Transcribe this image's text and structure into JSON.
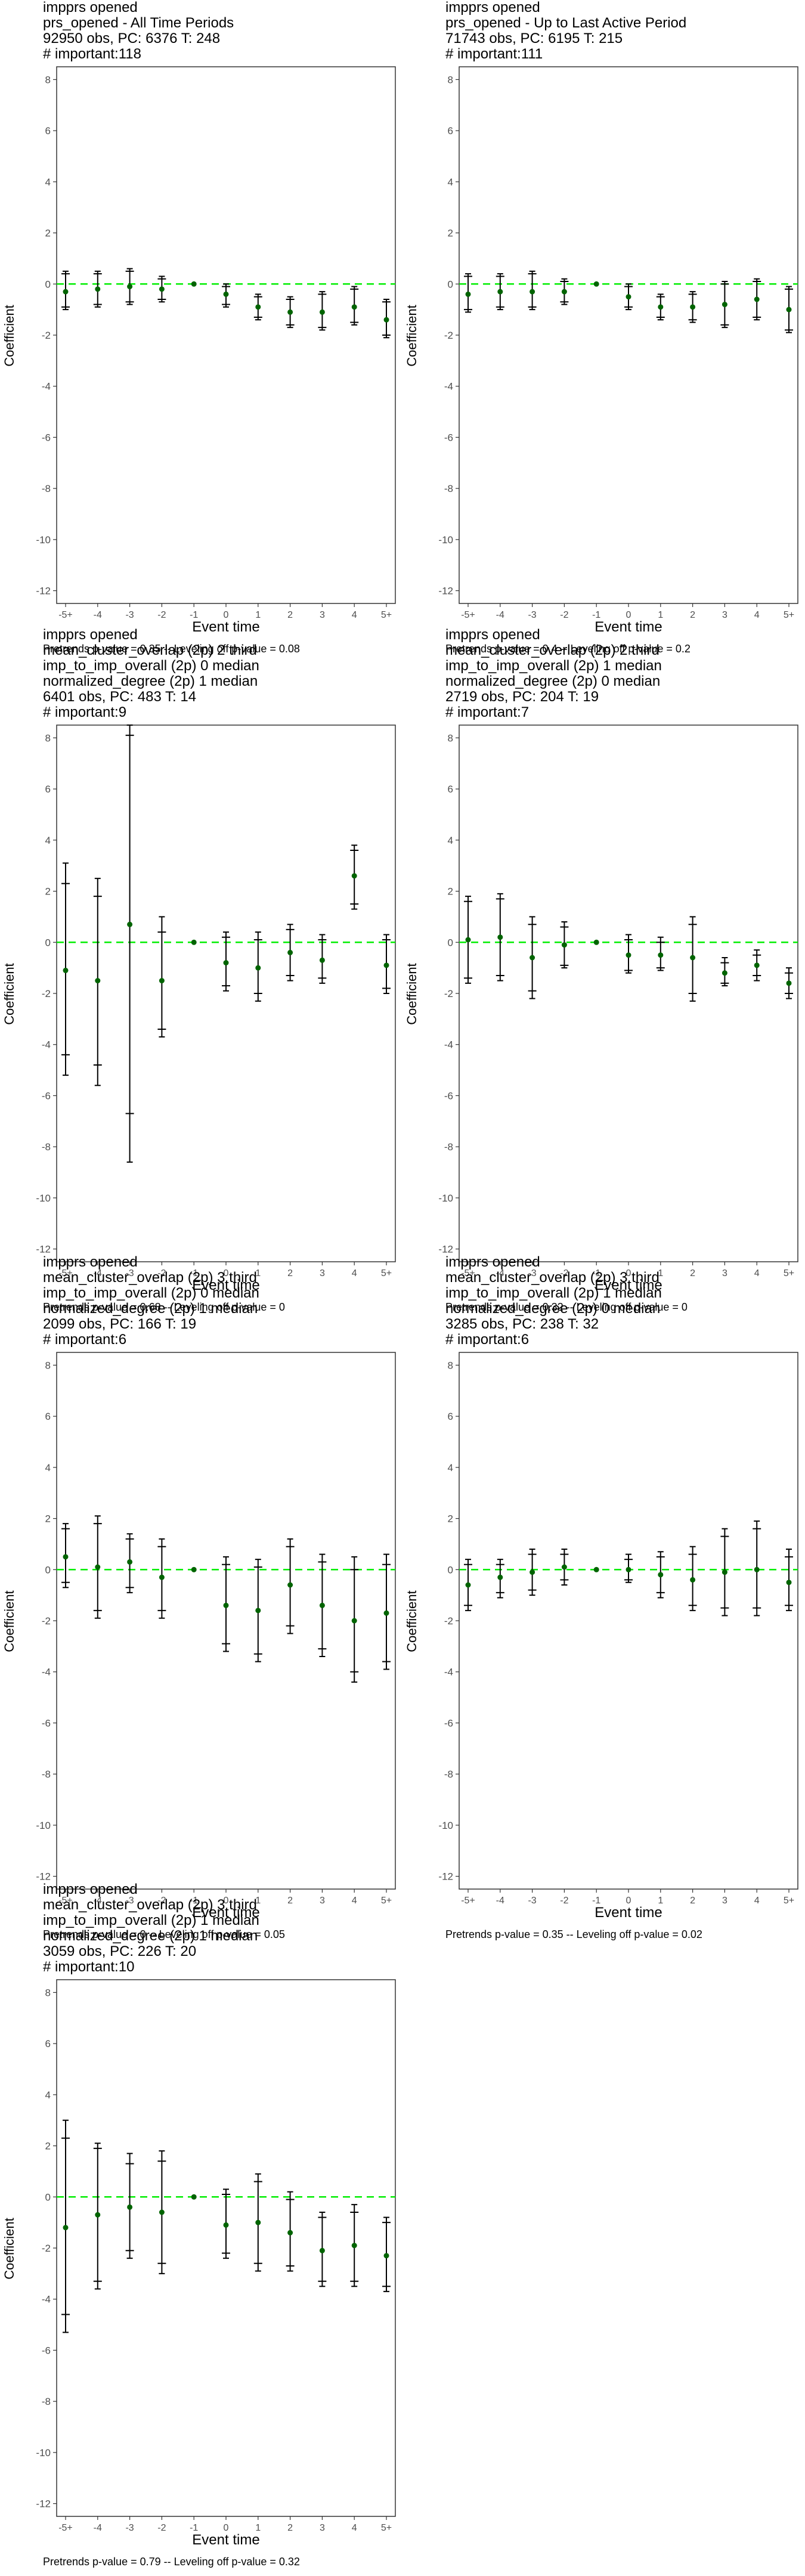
{
  "chart_data": [
    {
      "type": "scatter",
      "title": [
        "impprs opened",
        "prs_opened - All Time Periods",
        "92950 obs, PC: 6376 T: 248",
        "# important:118"
      ],
      "xlabel": "Event time",
      "ylabel": "Coefficient",
      "categories": [
        "-5+",
        "-4",
        "-3",
        "-2",
        "-1",
        "0",
        "1",
        "2",
        "3",
        "4",
        "5+"
      ],
      "ylim": [
        -12.5,
        8.5
      ],
      "yticks": [
        -12,
        -10,
        -8,
        -6,
        -4,
        -2,
        0,
        2,
        4,
        6,
        8
      ],
      "reference_line": 0,
      "points": [
        {
          "y": -0.3,
          "lo": -0.9,
          "hi": 0.4,
          "lo2": -1.0,
          "hi2": 0.5
        },
        {
          "y": -0.2,
          "lo": -0.8,
          "hi": 0.4,
          "lo2": -0.9,
          "hi2": 0.5
        },
        {
          "y": -0.1,
          "lo": -0.7,
          "hi": 0.5,
          "lo2": -0.8,
          "hi2": 0.6
        },
        {
          "y": -0.2,
          "lo": -0.6,
          "hi": 0.2,
          "lo2": -0.7,
          "hi2": 0.3
        },
        {
          "y": 0,
          "lo": 0,
          "hi": 0,
          "lo2": 0,
          "hi2": 0
        },
        {
          "y": -0.4,
          "lo": -0.8,
          "hi": -0.1,
          "lo2": -0.9,
          "hi2": 0.0
        },
        {
          "y": -0.9,
          "lo": -1.3,
          "hi": -0.5,
          "lo2": -1.4,
          "hi2": -0.4
        },
        {
          "y": -1.1,
          "lo": -1.6,
          "hi": -0.6,
          "lo2": -1.7,
          "hi2": -0.5
        },
        {
          "y": -1.1,
          "lo": -1.7,
          "hi": -0.4,
          "lo2": -1.8,
          "hi2": -0.3
        },
        {
          "y": -0.9,
          "lo": -1.5,
          "hi": -0.2,
          "lo2": -1.6,
          "hi2": -0.1
        },
        {
          "y": -1.4,
          "lo": -2.0,
          "hi": -0.7,
          "lo2": -2.1,
          "hi2": -0.6
        }
      ],
      "caption": "Pretrends p-value = 0.35 -- Leveling off p-value = 0.08"
    },
    {
      "type": "scatter",
      "title": [
        "impprs opened",
        "prs_opened - Up to Last Active Period",
        "71743 obs, PC: 6195 T: 215",
        "# important:111"
      ],
      "xlabel": "Event time",
      "ylabel": "Coefficient",
      "categories": [
        "-5+",
        "-4",
        "-3",
        "-2",
        "-1",
        "0",
        "1",
        "2",
        "3",
        "4",
        "5+"
      ],
      "ylim": [
        -12.5,
        8.5
      ],
      "yticks": [
        -12,
        -10,
        -8,
        -6,
        -4,
        -2,
        0,
        2,
        4,
        6,
        8
      ],
      "reference_line": 0,
      "points": [
        {
          "y": -0.4,
          "lo": -1.0,
          "hi": 0.3,
          "lo2": -1.1,
          "hi2": 0.4
        },
        {
          "y": -0.3,
          "lo": -0.9,
          "hi": 0.3,
          "lo2": -1.0,
          "hi2": 0.4
        },
        {
          "y": -0.3,
          "lo": -0.9,
          "hi": 0.4,
          "lo2": -1.0,
          "hi2": 0.5
        },
        {
          "y": -0.3,
          "lo": -0.7,
          "hi": 0.1,
          "lo2": -0.8,
          "hi2": 0.2
        },
        {
          "y": 0,
          "lo": 0,
          "hi": 0,
          "lo2": 0,
          "hi2": 0
        },
        {
          "y": -0.5,
          "lo": -0.9,
          "hi": -0.1,
          "lo2": -1.0,
          "hi2": 0.0
        },
        {
          "y": -0.9,
          "lo": -1.3,
          "hi": -0.5,
          "lo2": -1.4,
          "hi2": -0.4
        },
        {
          "y": -0.9,
          "lo": -1.4,
          "hi": -0.4,
          "lo2": -1.5,
          "hi2": -0.3
        },
        {
          "y": -0.8,
          "lo": -1.6,
          "hi": 0.0,
          "lo2": -1.7,
          "hi2": 0.1
        },
        {
          "y": -0.6,
          "lo": -1.3,
          "hi": 0.1,
          "lo2": -1.4,
          "hi2": 0.2
        },
        {
          "y": -1.0,
          "lo": -1.8,
          "hi": -0.2,
          "lo2": -1.9,
          "hi2": -0.1
        }
      ],
      "caption": "Pretrends p-value = 0.4 -- Leveling off p-value = 0.2"
    },
    {
      "type": "scatter",
      "title": [
        "impprs opened",
        "mean_cluster_overlap (2p) 2 third",
        "imp_to_imp_overall (2p) 0 median",
        "normalized_degree (2p) 1 median",
        "6401 obs, PC: 483 T: 14",
        "# important:9"
      ],
      "xlabel": "Event time",
      "ylabel": "Coefficient",
      "categories": [
        "-5+",
        "-4",
        "-3",
        "-2",
        "-1",
        "0",
        "1",
        "2",
        "3",
        "4",
        "5+"
      ],
      "ylim": [
        -12.5,
        8.5
      ],
      "yticks": [
        -12,
        -10,
        -8,
        -6,
        -4,
        -2,
        0,
        2,
        4,
        6,
        8
      ],
      "reference_line": 0,
      "points": [
        {
          "y": -1.1,
          "lo": -4.4,
          "hi": 2.3,
          "lo2": -5.2,
          "hi2": 3.1
        },
        {
          "y": -1.5,
          "lo": -4.8,
          "hi": 1.8,
          "lo2": -5.6,
          "hi2": 2.5
        },
        {
          "y": 0.7,
          "lo": -6.7,
          "hi": 8.1,
          "lo2": -8.6,
          "hi2": 8.5
        },
        {
          "y": -1.5,
          "lo": -3.4,
          "hi": 0.4,
          "lo2": -3.7,
          "hi2": 1.0
        },
        {
          "y": 0,
          "lo": 0,
          "hi": 0,
          "lo2": 0,
          "hi2": 0
        },
        {
          "y": -0.8,
          "lo": -1.7,
          "hi": 0.2,
          "lo2": -1.9,
          "hi2": 0.4
        },
        {
          "y": -1.0,
          "lo": -2.0,
          "hi": 0.1,
          "lo2": -2.3,
          "hi2": 0.4
        },
        {
          "y": -0.4,
          "lo": -1.3,
          "hi": 0.5,
          "lo2": -1.5,
          "hi2": 0.7
        },
        {
          "y": -0.7,
          "lo": -1.4,
          "hi": 0.1,
          "lo2": -1.6,
          "hi2": 0.3
        },
        {
          "y": 2.6,
          "lo": 1.5,
          "hi": 3.6,
          "lo2": 1.3,
          "hi2": 3.8
        },
        {
          "y": -0.9,
          "lo": -1.8,
          "hi": 0.1,
          "lo2": -2.0,
          "hi2": 0.3
        }
      ],
      "caption": "Pretrends p-value = 0.68 -- Leveling off p-value = 0"
    },
    {
      "type": "scatter",
      "title": [
        "impprs opened",
        "mean_cluster_overlap (2p) 2 third",
        "imp_to_imp_overall (2p) 1 median",
        "normalized_degree (2p) 0 median",
        "2719 obs, PC: 204 T: 19",
        "# important:7"
      ],
      "xlabel": "Event time",
      "ylabel": "Coefficient",
      "categories": [
        "-5+",
        "-4",
        "-3",
        "-2",
        "-1",
        "0",
        "1",
        "2",
        "3",
        "4",
        "5+"
      ],
      "ylim": [
        -12.5,
        8.5
      ],
      "yticks": [
        -12,
        -10,
        -8,
        -6,
        -4,
        -2,
        0,
        2,
        4,
        6,
        8
      ],
      "reference_line": 0,
      "points": [
        {
          "y": 0.1,
          "lo": -1.4,
          "hi": 1.6,
          "lo2": -1.6,
          "hi2": 1.8
        },
        {
          "y": 0.2,
          "lo": -1.3,
          "hi": 1.7,
          "lo2": -1.5,
          "hi2": 1.9
        },
        {
          "y": -0.6,
          "lo": -1.9,
          "hi": 0.7,
          "lo2": -2.2,
          "hi2": 1.0
        },
        {
          "y": -0.1,
          "lo": -0.9,
          "hi": 0.6,
          "lo2": -1.0,
          "hi2": 0.8
        },
        {
          "y": 0,
          "lo": 0,
          "hi": 0,
          "lo2": 0,
          "hi2": 0
        },
        {
          "y": -0.5,
          "lo": -1.1,
          "hi": 0.1,
          "lo2": -1.2,
          "hi2": 0.3
        },
        {
          "y": -0.5,
          "lo": -1.0,
          "hi": 0.0,
          "lo2": -1.1,
          "hi2": 0.2
        },
        {
          "y": -0.6,
          "lo": -2.0,
          "hi": 0.7,
          "lo2": -2.3,
          "hi2": 1.0
        },
        {
          "y": -1.2,
          "lo": -1.6,
          "hi": -0.8,
          "lo2": -1.7,
          "hi2": -0.6
        },
        {
          "y": -0.9,
          "lo": -1.3,
          "hi": -0.5,
          "lo2": -1.5,
          "hi2": -0.3
        },
        {
          "y": -1.6,
          "lo": -2.0,
          "hi": -1.2,
          "lo2": -2.2,
          "hi2": -1.0
        }
      ],
      "caption": "Pretrends p-value = 0.32 -- Leveling off p-value = 0"
    },
    {
      "type": "scatter",
      "title": [
        "impprs opened",
        "mean_cluster_overlap (2p) 3 third",
        "imp_to_imp_overall (2p) 0 median",
        "normalized_degree (2p) 1 median",
        "2099 obs, PC: 166 T: 19",
        "# important:6"
      ],
      "xlabel": "Event time",
      "ylabel": "Coefficient",
      "categories": [
        "-5+",
        "-4",
        "-3",
        "-2",
        "-1",
        "0",
        "1",
        "2",
        "3",
        "4",
        "5+"
      ],
      "ylim": [
        -12.5,
        8.5
      ],
      "yticks": [
        -12,
        -10,
        -8,
        -6,
        -4,
        -2,
        0,
        2,
        4,
        6,
        8
      ],
      "reference_line": 0,
      "points": [
        {
          "y": 0.5,
          "lo": -0.5,
          "hi": 1.6,
          "lo2": -0.7,
          "hi2": 1.8
        },
        {
          "y": 0.1,
          "lo": -1.6,
          "hi": 1.8,
          "lo2": -1.9,
          "hi2": 2.1
        },
        {
          "y": 0.3,
          "lo": -0.7,
          "hi": 1.2,
          "lo2": -0.9,
          "hi2": 1.4
        },
        {
          "y": -0.3,
          "lo": -1.6,
          "hi": 0.9,
          "lo2": -1.9,
          "hi2": 1.2
        },
        {
          "y": 0,
          "lo": 0,
          "hi": 0,
          "lo2": 0,
          "hi2": 0
        },
        {
          "y": -1.4,
          "lo": -2.9,
          "hi": 0.2,
          "lo2": -3.2,
          "hi2": 0.5
        },
        {
          "y": -1.6,
          "lo": -3.3,
          "hi": 0.1,
          "lo2": -3.6,
          "hi2": 0.4
        },
        {
          "y": -0.6,
          "lo": -2.2,
          "hi": 0.9,
          "lo2": -2.5,
          "hi2": 1.2
        },
        {
          "y": -1.4,
          "lo": -3.1,
          "hi": 0.3,
          "lo2": -3.4,
          "hi2": 0.6
        },
        {
          "y": -2.0,
          "lo": -4.0,
          "hi": 0.0,
          "lo2": -4.4,
          "hi2": 0.5
        },
        {
          "y": -1.7,
          "lo": -3.6,
          "hi": 0.2,
          "lo2": -3.9,
          "hi2": 0.6
        }
      ],
      "caption": "Pretrends p-value = 0 -- Leveling off p-value = 0.05"
    },
    {
      "type": "scatter",
      "title": [
        "impprs opened",
        "mean_cluster_overlap (2p) 3 third",
        "imp_to_imp_overall (2p) 1 median",
        "normalized_degree (2p) 0 median",
        "3285 obs, PC: 238 T: 32",
        "# important:6"
      ],
      "xlabel": "Event time",
      "ylabel": "Coefficient",
      "categories": [
        "-5+",
        "-4",
        "-3",
        "-2",
        "-1",
        "0",
        "1",
        "2",
        "3",
        "4",
        "5+"
      ],
      "ylim": [
        -12.5,
        8.5
      ],
      "yticks": [
        -12,
        -10,
        -8,
        -6,
        -4,
        -2,
        0,
        2,
        4,
        6,
        8
      ],
      "reference_line": 0,
      "points": [
        {
          "y": -0.6,
          "lo": -1.4,
          "hi": 0.2,
          "lo2": -1.6,
          "hi2": 0.4
        },
        {
          "y": -0.3,
          "lo": -0.9,
          "hi": 0.2,
          "lo2": -1.1,
          "hi2": 0.4
        },
        {
          "y": -0.1,
          "lo": -0.8,
          "hi": 0.6,
          "lo2": -1.0,
          "hi2": 0.8
        },
        {
          "y": 0.1,
          "lo": -0.4,
          "hi": 0.6,
          "lo2": -0.6,
          "hi2": 0.8
        },
        {
          "y": 0,
          "lo": 0,
          "hi": 0,
          "lo2": 0,
          "hi2": 0
        },
        {
          "y": 0.0,
          "lo": -0.4,
          "hi": 0.4,
          "lo2": -0.5,
          "hi2": 0.6
        },
        {
          "y": -0.2,
          "lo": -0.9,
          "hi": 0.5,
          "lo2": -1.1,
          "hi2": 0.7
        },
        {
          "y": -0.4,
          "lo": -1.4,
          "hi": 0.6,
          "lo2": -1.6,
          "hi2": 0.9
        },
        {
          "y": -0.1,
          "lo": -1.5,
          "hi": 1.3,
          "lo2": -1.8,
          "hi2": 1.6
        },
        {
          "y": 0.0,
          "lo": -1.5,
          "hi": 1.6,
          "lo2": -1.8,
          "hi2": 1.9
        },
        {
          "y": -0.5,
          "lo": -1.4,
          "hi": 0.5,
          "lo2": -1.6,
          "hi2": 0.8
        }
      ],
      "caption": "Pretrends p-value = 0.35 -- Leveling off p-value = 0.02"
    },
    {
      "type": "scatter",
      "title": [
        "impprs opened",
        "mean_cluster_overlap (2p) 3 third",
        "imp_to_imp_overall (2p) 1 median",
        "normalized_degree (2p) 1 median",
        "3059 obs, PC: 226 T: 20",
        "# important:10"
      ],
      "xlabel": "Event time",
      "ylabel": "Coefficient",
      "categories": [
        "-5+",
        "-4",
        "-3",
        "-2",
        "-1",
        "0",
        "1",
        "2",
        "3",
        "4",
        "5+"
      ],
      "ylim": [
        -12.5,
        8.5
      ],
      "yticks": [
        -12,
        -10,
        -8,
        -6,
        -4,
        -2,
        0,
        2,
        4,
        6,
        8
      ],
      "reference_line": 0,
      "points": [
        {
          "y": -1.2,
          "lo": -4.6,
          "hi": 2.3,
          "lo2": -5.3,
          "hi2": 3.0
        },
        {
          "y": -0.7,
          "lo": -3.3,
          "hi": 1.9,
          "lo2": -3.6,
          "hi2": 2.1
        },
        {
          "y": -0.4,
          "lo": -2.1,
          "hi": 1.3,
          "lo2": -2.4,
          "hi2": 1.7
        },
        {
          "y": -0.6,
          "lo": -2.6,
          "hi": 1.4,
          "lo2": -3.0,
          "hi2": 1.8
        },
        {
          "y": 0,
          "lo": 0,
          "hi": 0,
          "lo2": 0,
          "hi2": 0
        },
        {
          "y": -1.1,
          "lo": -2.2,
          "hi": 0.1,
          "lo2": -2.4,
          "hi2": 0.3
        },
        {
          "y": -1.0,
          "lo": -2.6,
          "hi": 0.6,
          "lo2": -2.9,
          "hi2": 0.9
        },
        {
          "y": -1.4,
          "lo": -2.7,
          "hi": -0.1,
          "lo2": -2.9,
          "hi2": 0.2
        },
        {
          "y": -2.1,
          "lo": -3.3,
          "hi": -0.8,
          "lo2": -3.5,
          "hi2": -0.6
        },
        {
          "y": -1.9,
          "lo": -3.3,
          "hi": -0.6,
          "lo2": -3.5,
          "hi2": -0.3
        },
        {
          "y": -2.3,
          "lo": -3.5,
          "hi": -1.0,
          "lo2": -3.7,
          "hi2": -0.8
        }
      ],
      "caption": "Pretrends p-value = 0.79 -- Leveling off p-value = 0.32"
    }
  ],
  "colors": {
    "point": "#006400",
    "reference_line": "#00ee00",
    "errorbar": "#000000",
    "axis_text": "#4d4d4d",
    "frame": "#333333"
  }
}
